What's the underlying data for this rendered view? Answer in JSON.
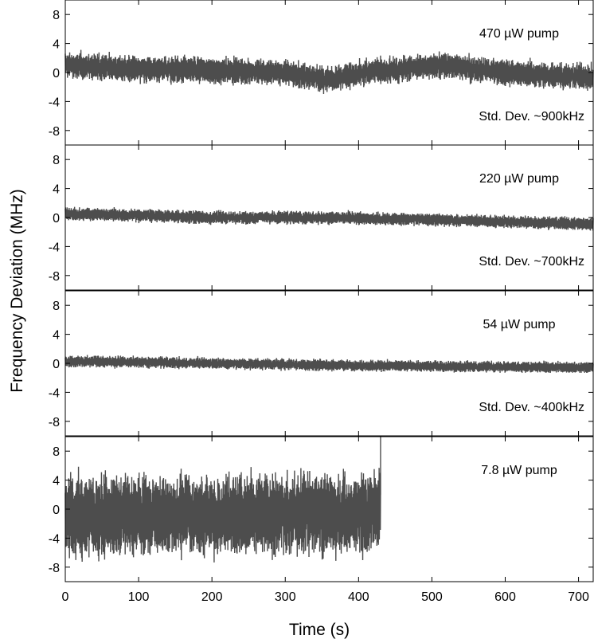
{
  "chart_data": {
    "type": "line",
    "xlabel": "Time (s)",
    "ylabel": "Frequency Deviation (MHz)",
    "xlim": [
      0,
      720
    ],
    "xticks": [
      0,
      100,
      200,
      300,
      400,
      500,
      600,
      700
    ],
    "ylim": [
      -10,
      10
    ],
    "yticks": [
      8,
      4,
      0,
      -4,
      -8
    ],
    "line_color": "#4d4d4d",
    "panels": [
      {
        "label": "470 µW pump",
        "std_label": "Std. Dev. ~900kHz",
        "x_end": 720,
        "trend": [
          [
            0,
            1.0
          ],
          [
            100,
            0.5
          ],
          [
            200,
            0.3
          ],
          [
            300,
            0.0
          ],
          [
            360,
            -1.0
          ],
          [
            420,
            0.2
          ],
          [
            520,
            1.0
          ],
          [
            600,
            0.0
          ],
          [
            720,
            -0.7
          ]
        ],
        "band_halfwidth": 1.6,
        "y_range": [
          -3.8,
          3.5
        ]
      },
      {
        "label": "220 µW pump",
        "std_label": "Std. Dev. ~700kHz",
        "x_end": 720,
        "trend": [
          [
            0,
            0.5
          ],
          [
            100,
            0.3
          ],
          [
            200,
            0.0
          ],
          [
            300,
            0.0
          ],
          [
            400,
            -0.1
          ],
          [
            500,
            -0.3
          ],
          [
            600,
            -0.6
          ],
          [
            720,
            -0.9
          ]
        ],
        "band_halfwidth": 0.8,
        "y_range": [
          -1.8,
          1.8
        ]
      },
      {
        "label": "54 µW pump",
        "std_label": "Std. Dev. ~400kHz",
        "x_end": 720,
        "trend": [
          [
            0,
            0.3
          ],
          [
            200,
            0.0
          ],
          [
            400,
            -0.3
          ],
          [
            720,
            -0.6
          ]
        ],
        "band_halfwidth": 0.7,
        "y_range": [
          -1.3,
          1.4
        ]
      },
      {
        "label": "7.8 µW pump",
        "std_label": "",
        "x_end": 430,
        "trend": [
          [
            0,
            -1.0
          ],
          [
            200,
            -1.0
          ],
          [
            300,
            -0.5
          ],
          [
            430,
            -0.5
          ]
        ],
        "band_halfwidth": 5.0,
        "y_range": [
          -8.2,
          9.2
        ]
      }
    ]
  }
}
